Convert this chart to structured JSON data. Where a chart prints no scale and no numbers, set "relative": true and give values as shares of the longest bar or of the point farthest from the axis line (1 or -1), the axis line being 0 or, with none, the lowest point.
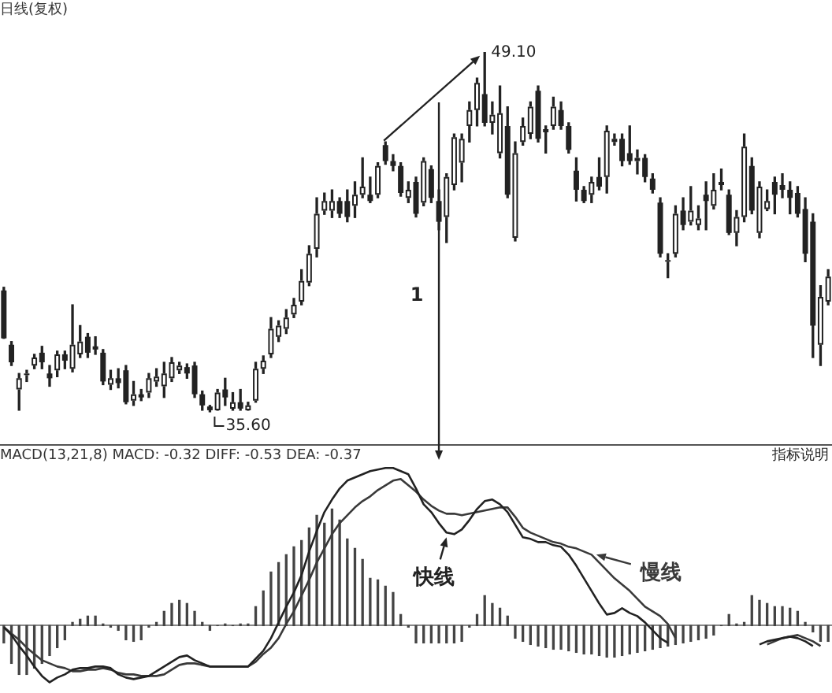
{
  "chart_data": [
    {
      "type": "candlestick",
      "title": "日线(复权)",
      "color": "#222222",
      "colors": [
        "#222222",
        "#222222",
        "#ffffff",
        "#ffffff",
        "#ffffff",
        "#222222",
        "#222222",
        "#ffffff",
        "#222222",
        "#ffffff",
        "#ffffff",
        "#222222",
        "#222222",
        "#222222",
        "#ffffff",
        "#222222",
        "#222222",
        "#ffffff",
        "#222222",
        "#ffffff",
        "#ffffff",
        "#ffffff",
        "#ffffff",
        "#ffffff",
        "#222222",
        "#222222",
        "#222222",
        "#222222",
        "#ffffff",
        "#222222",
        "#ffffff",
        "#222222",
        "#ffffff",
        "#ffffff",
        "#ffffff",
        "#ffffff",
        "#ffffff",
        "#ffffff",
        "#ffffff",
        "#ffffff",
        "#ffffff",
        "#ffffff",
        "#ffffff",
        "#ffffff",
        "#222222",
        "#222222",
        "#ffffff",
        "#ffffff",
        "#222222",
        "#ffffff",
        "#222222",
        "#222222",
        "#222222",
        "#ffffff",
        "#222222",
        "#ffffff",
        "#222222",
        "#222222",
        "#ffffff",
        "#ffffff",
        "#ffffff",
        "#ffffff",
        "#ffffff",
        "#222222",
        "#ffffff",
        "#ffffff",
        "#222222",
        "#ffffff",
        "#ffffff",
        "#ffffff",
        "#222222",
        "#222222",
        "#ffffff",
        "#222222",
        "#222222",
        "#222222",
        "#222222",
        "#ffffff",
        "#222222",
        "#ffffff",
        "#ffffff",
        "#222222",
        "#222222",
        "#ffffff",
        "#222222",
        "#222222",
        "#222222",
        "#ffffff",
        "#ffffff",
        "#222222",
        "#ffffff",
        "#ffffff",
        "#222222",
        "#ffffff",
        "#222222",
        "#222222",
        "#ffffff",
        "#ffffff",
        "#222222",
        "#ffffff",
        "#ffffff",
        "#222222",
        "#222222",
        "#222222",
        "#222222",
        "#222222",
        "#222222",
        "#ffffff",
        "#ffffff"
      ],
      "categories": [
        null,
        null,
        null,
        null,
        null,
        null,
        null,
        null,
        null,
        null,
        null,
        null,
        null,
        null,
        null,
        null,
        null,
        null,
        null,
        null,
        null,
        null,
        null,
        null,
        null,
        null,
        null,
        null,
        null,
        null,
        null,
        null,
        null,
        null,
        null,
        null,
        null,
        null,
        null,
        null,
        null,
        null,
        null,
        null,
        null,
        null,
        null,
        null,
        null,
        null,
        null,
        null,
        null,
        null,
        null,
        null,
        null,
        null,
        null,
        null,
        null,
        null,
        null,
        null,
        null,
        null,
        null,
        null,
        null,
        null,
        null,
        null,
        null,
        null,
        null,
        null,
        null,
        null,
        null,
        null,
        null,
        null,
        null,
        null,
        null,
        null,
        null,
        null,
        null,
        null,
        null,
        null,
        null,
        null,
        null,
        null,
        null,
        null,
        null,
        null,
        null,
        null,
        null,
        null,
        null,
        null,
        null,
        null,
        null
      ],
      "ohlc": [
        [
          40.16,
          40.28,
          38.36,
          38.36
        ],
        [
          38.12,
          38.24,
          37.34,
          37.46
        ],
        [
          36.44,
          37.04,
          35.66,
          36.86
        ],
        [
          36.98,
          37.16,
          36.74,
          37.04
        ],
        [
          37.34,
          37.76,
          37.22,
          37.64
        ],
        [
          37.82,
          38.06,
          37.22,
          37.46
        ],
        [
          37.04,
          37.34,
          36.56,
          36.86
        ],
        [
          37.16,
          37.88,
          36.92,
          37.76
        ],
        [
          37.76,
          37.88,
          37.22,
          37.52
        ],
        [
          37.22,
          39.62,
          37.1,
          38.12
        ],
        [
          37.76,
          38.84,
          37.64,
          38.24
        ],
        [
          38.42,
          38.54,
          37.64,
          37.82
        ],
        [
          38.06,
          38.42,
          37.76,
          37.94
        ],
        [
          37.82,
          37.94,
          36.62,
          36.74
        ],
        [
          36.62,
          37.16,
          36.44,
          36.86
        ],
        [
          36.86,
          37.22,
          36.5,
          36.68
        ],
        [
          37.16,
          37.34,
          35.9,
          35.96
        ],
        [
          36.02,
          36.74,
          35.84,
          36.26
        ],
        [
          36.26,
          36.44,
          36.02,
          36.14
        ],
        [
          36.32,
          37.04,
          36.14,
          36.86
        ],
        [
          36.74,
          37.22,
          36.56,
          36.92
        ],
        [
          36.56,
          37.46,
          36.14,
          37.04
        ],
        [
          36.86,
          37.64,
          36.74,
          37.46
        ],
        [
          37.16,
          37.46,
          37.04,
          37.34
        ],
        [
          37.28,
          37.4,
          36.86,
          37.04
        ],
        [
          37.34,
          37.46,
          36.14,
          36.26
        ],
        [
          36.26,
          36.38,
          35.66,
          35.84
        ],
        [
          35.8,
          35.84,
          35.6,
          35.66
        ],
        [
          35.66,
          36.44,
          35.66,
          36.32
        ],
        [
          36.44,
          36.86,
          35.84,
          36.14
        ],
        [
          35.72,
          36.32,
          35.66,
          35.96
        ],
        [
          35.96,
          36.44,
          35.66,
          35.72
        ],
        [
          35.66,
          35.96,
          35.66,
          35.84
        ],
        [
          36.02,
          37.46,
          35.96,
          37.22
        ],
        [
          37.22,
          37.7,
          37.04,
          37.52
        ],
        [
          37.76,
          39.14,
          37.64,
          38.72
        ],
        [
          38.42,
          39.02,
          38.24,
          38.84
        ],
        [
          38.72,
          39.44,
          38.54,
          39.14
        ],
        [
          39.26,
          39.86,
          39.14,
          39.62
        ],
        [
          39.74,
          40.94,
          39.62,
          40.52
        ],
        [
          40.46,
          41.84,
          40.34,
          41.54
        ],
        [
          41.72,
          43.64,
          41.42,
          43.04
        ],
        [
          43.16,
          43.82,
          43.02,
          43.52
        ],
        [
          43.16,
          43.94,
          42.9,
          43.52
        ],
        [
          43.52,
          43.64,
          42.9,
          43.04
        ],
        [
          43.52,
          43.94,
          42.74,
          42.92
        ],
        [
          43.34,
          44.24,
          42.9,
          43.76
        ],
        [
          43.76,
          45.14,
          43.64,
          44.06
        ],
        [
          43.76,
          44.42,
          43.46,
          43.52
        ],
        [
          43.76,
          44.96,
          43.64,
          44.84
        ],
        [
          45.62,
          45.74,
          44.9,
          45.02
        ],
        [
          45.02,
          45.26,
          44.66,
          44.84
        ],
        [
          44.84,
          44.96,
          43.7,
          43.82
        ],
        [
          43.64,
          44.24,
          43.46,
          43.94
        ],
        [
          44.24,
          44.42,
          42.92,
          43.04
        ],
        [
          43.46,
          45.14,
          43.34,
          45.02
        ],
        [
          44.72,
          44.84,
          43.46,
          43.64
        ],
        [
          43.52,
          43.94,
          42.44,
          42.74
        ],
        [
          42.92,
          44.54,
          41.96,
          44.42
        ],
        [
          44.12,
          46.04,
          43.94,
          45.92
        ],
        [
          44.96,
          46.04,
          44.24,
          45.86
        ],
        [
          46.34,
          47.24,
          45.74,
          46.94
        ],
        [
          46.94,
          48.14,
          46.34,
          47.96
        ],
        [
          47.54,
          49.1,
          46.34,
          46.46
        ],
        [
          46.46,
          47.24,
          46.04,
          46.76
        ],
        [
          45.32,
          47.84,
          45.14,
          46.82
        ],
        [
          46.34,
          47.06,
          43.64,
          43.76
        ],
        [
          42.14,
          45.74,
          42.02,
          45.32
        ],
        [
          45.74,
          46.64,
          45.62,
          46.34
        ],
        [
          46.04,
          47.24,
          45.86,
          47.06
        ],
        [
          47.66,
          47.84,
          45.74,
          45.86
        ],
        [
          46.22,
          46.34,
          45.32,
          46.1
        ],
        [
          46.34,
          47.42,
          46.22,
          47.06
        ],
        [
          46.94,
          47.24,
          46.22,
          46.34
        ],
        [
          46.34,
          46.46,
          45.32,
          45.44
        ],
        [
          44.66,
          45.14,
          43.52,
          43.94
        ],
        [
          43.94,
          44.06,
          43.46,
          43.52
        ],
        [
          43.76,
          44.42,
          43.46,
          44.24
        ],
        [
          44.42,
          45.14,
          43.94,
          44.06
        ],
        [
          44.42,
          46.34,
          43.82,
          46.16
        ],
        [
          45.74,
          46.04,
          45.62,
          45.86
        ],
        [
          45.86,
          46.04,
          44.84,
          45.02
        ],
        [
          45.32,
          46.34,
          44.9,
          45.02
        ],
        [
          45.02,
          45.44,
          44.54,
          45.14
        ],
        [
          45.14,
          45.26,
          44.24,
          44.42
        ],
        [
          44.36,
          44.54,
          43.82,
          43.94
        ],
        [
          43.46,
          43.64,
          41.42,
          41.54
        ],
        [
          41.24,
          41.54,
          40.64,
          41.3
        ],
        [
          41.54,
          43.34,
          41.42,
          43.04
        ],
        [
          43.16,
          43.64,
          42.44,
          42.62
        ],
        [
          42.74,
          44.06,
          42.62,
          43.16
        ],
        [
          42.62,
          43.34,
          42.44,
          42.86
        ],
        [
          43.76,
          44.24,
          42.44,
          43.52
        ],
        [
          43.34,
          44.54,
          43.22,
          43.94
        ],
        [
          44.24,
          44.72,
          43.94,
          44.12
        ],
        [
          43.76,
          43.94,
          42.26,
          42.32
        ],
        [
          42.32,
          43.16,
          41.84,
          42.92
        ],
        [
          42.92,
          46.04,
          42.74,
          45.56
        ],
        [
          44.84,
          45.14,
          43.04,
          43.16
        ],
        [
          42.32,
          44.24,
          42.14,
          44.06
        ],
        [
          43.22,
          43.94,
          43.16,
          43.52
        ],
        [
          44.24,
          44.42,
          43.04,
          43.76
        ],
        [
          44.12,
          44.54,
          43.64,
          43.94
        ],
        [
          43.94,
          44.24,
          43.04,
          43.64
        ],
        [
          43.82,
          44.06,
          42.92,
          43.04
        ],
        [
          43.22,
          43.64,
          41.24,
          41.54
        ],
        [
          42.74,
          43.04,
          37.64,
          38.84
        ],
        [
          38.12,
          40.34,
          37.34,
          39.92
        ],
        [
          39.74,
          40.94,
          39.62,
          40.68
        ]
      ],
      "annotations": [
        "49.10",
        "35.60",
        "1"
      ]
    },
    {
      "type": "line",
      "title": "MACD(13,21,8) MACD: -0.32 DIFF: -0.53 DEA: -0.37",
      "relative": true,
      "categories": [
        null,
        null,
        null,
        null,
        null,
        null,
        null,
        null,
        null,
        null,
        null,
        null,
        null,
        null,
        null,
        null,
        null,
        null,
        null,
        null,
        null,
        null,
        null,
        null,
        null,
        null,
        null,
        null,
        null,
        null,
        null,
        null,
        null,
        null,
        null,
        null,
        null,
        null,
        null,
        null,
        null,
        null,
        null,
        null,
        null,
        null,
        null,
        null,
        null,
        null,
        null,
        null,
        null,
        null,
        null,
        null,
        null,
        null,
        null,
        null,
        null,
        null,
        null,
        null,
        null,
        null,
        null,
        null,
        null,
        null,
        null,
        null,
        null,
        null,
        null,
        null,
        null,
        null,
        null,
        null,
        null,
        null,
        null,
        null,
        null,
        null,
        null,
        null,
        null,
        null,
        null,
        null,
        null,
        null,
        null,
        null,
        null,
        null,
        null,
        null,
        null,
        null,
        null,
        null,
        null,
        null,
        null,
        null,
        null
      ],
      "series": [
        {
          "type": "bar",
          "color": "#444444",
          "values": [
            -0.11,
            -0.24,
            -0.31,
            -0.31,
            -0.27,
            -0.24,
            -0.19,
            -0.14,
            -0.09,
            0.02,
            0.04,
            0.06,
            0.06,
            0.01,
            -0.01,
            -0.03,
            -0.09,
            -0.1,
            -0.09,
            -0.01,
            0.02,
            0.09,
            0.14,
            0.16,
            0.14,
            0.09,
            0.02,
            -0.03,
            0,
            0.01,
            0,
            0.01,
            0.01,
            0.12,
            0.22,
            0.34,
            0.4,
            0.45,
            0.5,
            0.54,
            0.62,
            0.7,
            0.65,
            0.74,
            0.67,
            0.55,
            0.49,
            0.42,
            0.3,
            0.29,
            0.25,
            0.21,
            0.07,
            -0.01,
            -0.11,
            -0.11,
            -0.11,
            -0.11,
            -0.11,
            -0.11,
            -0.1,
            -0.01,
            0.07,
            0.19,
            0.14,
            0.11,
            0.06,
            -0.08,
            -0.1,
            -0.12,
            -0.13,
            -0.14,
            -0.15,
            -0.15,
            -0.16,
            -0.17,
            -0.18,
            -0.18,
            -0.19,
            -0.2,
            -0.2,
            -0.19,
            -0.18,
            -0.17,
            -0.16,
            -0.15,
            -0.14,
            -0.13,
            -0.12,
            -0.11,
            -0.1,
            -0.09,
            -0.08,
            -0.06,
            0,
            0.07,
            0.01,
            0.02,
            0.19,
            0.16,
            0.14,
            0.12,
            0.12,
            0.11,
            0.09,
            0.02,
            -0.04,
            -0.1,
            -0.1
          ]
        },
        {
          "type": "line",
          "name": "快线",
          "color": "#222222",
          "values": [
            -0.01,
            -0.06,
            -0.13,
            -0.19,
            -0.26,
            -0.32,
            -0.36,
            -0.33,
            -0.31,
            -0.28,
            -0.27,
            -0.27,
            -0.26,
            -0.26,
            -0.27,
            -0.31,
            -0.33,
            -0.34,
            -0.33,
            -0.32,
            -0.29,
            -0.26,
            -0.23,
            -0.2,
            -0.19,
            -0.22,
            -0.24,
            -0.26,
            -0.26,
            -0.26,
            -0.26,
            -0.26,
            -0.26,
            -0.21,
            -0.16,
            -0.08,
            0.02,
            0.12,
            0.21,
            0.32,
            0.47,
            0.6,
            0.72,
            0.8,
            0.87,
            0.92,
            0.94,
            0.96,
            0.98,
            0.99,
            1.0,
            1.0,
            0.98,
            0.96,
            0.87,
            0.77,
            0.72,
            0.65,
            0.59,
            0.58,
            0.61,
            0.67,
            0.74,
            0.79,
            0.8,
            0.77,
            0.72,
            0.64,
            0.56,
            0.55,
            0.53,
            0.53,
            0.51,
            0.5,
            0.45,
            0.38,
            0.3,
            0.22,
            0.14,
            0.07,
            0.08,
            0.11,
            0.08,
            0.06,
            0.02,
            -0.03,
            -0.08,
            -0.11,
            null,
            null,
            null,
            null,
            null,
            null,
            null,
            null,
            null,
            null,
            null,
            -0.12,
            -0.1,
            -0.09,
            -0.08,
            -0.07,
            -0.08,
            -0.1,
            -0.13,
            null,
            null
          ]
        },
        {
          "type": "line",
          "name": "慢线",
          "color": "#3a3a3a",
          "values": [
            -0.01,
            -0.05,
            -0.09,
            -0.14,
            -0.18,
            -0.22,
            -0.24,
            -0.26,
            -0.27,
            -0.29,
            -0.29,
            -0.28,
            -0.28,
            -0.27,
            -0.28,
            -0.3,
            -0.31,
            -0.31,
            -0.32,
            -0.32,
            -0.32,
            -0.31,
            -0.28,
            -0.25,
            -0.24,
            -0.24,
            -0.25,
            -0.26,
            -0.26,
            -0.26,
            -0.26,
            -0.26,
            -0.26,
            -0.23,
            -0.18,
            -0.14,
            -0.08,
            0.01,
            0.09,
            0.19,
            0.29,
            0.4,
            0.49,
            0.58,
            0.65,
            0.7,
            0.75,
            0.79,
            0.82,
            0.86,
            0.89,
            0.92,
            0.93,
            0.89,
            0.85,
            0.8,
            0.76,
            0.73,
            0.71,
            0.71,
            0.7,
            0.71,
            0.72,
            0.73,
            0.74,
            0.75,
            0.75,
            0.69,
            0.62,
            0.59,
            0.57,
            0.55,
            0.53,
            0.52,
            0.5,
            0.49,
            0.47,
            0.45,
            0.4,
            0.35,
            0.3,
            0.26,
            0.22,
            0.17,
            0.12,
            0.09,
            0.06,
            0.01,
            -0.08,
            null,
            null,
            null,
            null,
            null,
            null,
            null,
            null,
            null,
            null,
            null,
            -0.12,
            -0.1,
            -0.08,
            -0.07,
            -0.06,
            -0.08,
            -0.1,
            -0.13,
            null
          ]
        }
      ],
      "annotations": [
        "指标说明"
      ]
    }
  ]
}
